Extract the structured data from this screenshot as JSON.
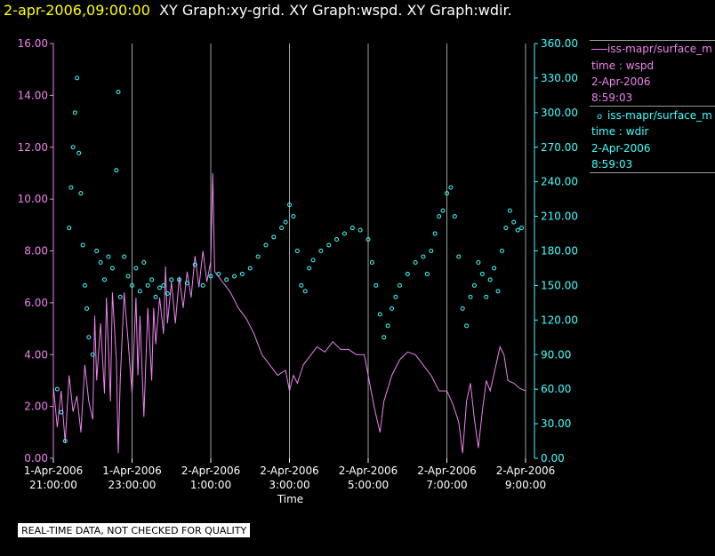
{
  "header": {
    "date": "2-apr-2006,09:00:00",
    "graphs": "XY Graph:xy-grid.  XY Graph:wspd.  XY Graph:wdir."
  },
  "legend": {
    "series1": {
      "line1": "iss-mapr/surface_m",
      "line2": "time : wspd",
      "line3": "2-Apr-2006",
      "line4": "8:59:03"
    },
    "series2": {
      "line1": "iss-mapr/surface_m",
      "line2": "time : wdir",
      "line3": "2-Apr-2006",
      "line4": "8:59:03"
    }
  },
  "footer": {
    "disclaimer": "REAL-TIME DATA, NOT CHECKED FOR QUALITY"
  },
  "colors": {
    "wspd": "#ee82ee",
    "wdir": "#40ffff",
    "grid": "#a0a0a0",
    "background": "#000000"
  },
  "chart_data": {
    "type": "line",
    "xlabel": "Time",
    "x_ticks": [
      {
        "date": "1-Apr-2006",
        "time": "21:00:00",
        "hour": 0
      },
      {
        "date": "1-Apr-2006",
        "time": "23:00:00",
        "hour": 2
      },
      {
        "date": "2-Apr-2006",
        "time": "1:00:00",
        "hour": 4
      },
      {
        "date": "2-Apr-2006",
        "time": "3:00:00",
        "hour": 6
      },
      {
        "date": "2-Apr-2006",
        "time": "5:00:00",
        "hour": 8
      },
      {
        "date": "2-Apr-2006",
        "time": "7:00:00",
        "hour": 10
      },
      {
        "date": "2-Apr-2006",
        "time": "9:00:00",
        "hour": 12
      }
    ],
    "xlim_hours_after_1Apr_21h": [
      0,
      12
    ],
    "left_axis": {
      "ylim": [
        0,
        16
      ],
      "ticks": [
        "0.00",
        "2.00",
        "4.00",
        "6.00",
        "8.00",
        "10.00",
        "12.00",
        "14.00",
        "16.00"
      ]
    },
    "right_axis": {
      "ylim": [
        0,
        360
      ],
      "ticks": [
        "0.00",
        "30.00",
        "60.00",
        "90.00",
        "120.00",
        "150.00",
        "180.00",
        "210.00",
        "240.00",
        "270.00",
        "300.00",
        "330.00",
        "360.00"
      ]
    },
    "grid": "vertical",
    "series": [
      {
        "key": "wspd",
        "axis": "left",
        "style": "line",
        "points": [
          [
            0,
            2.8
          ],
          [
            0.1,
            1.2
          ],
          [
            0.2,
            2.6
          ],
          [
            0.3,
            0.6
          ],
          [
            0.4,
            3.2
          ],
          [
            0.5,
            1.8
          ],
          [
            0.6,
            2.4
          ],
          [
            0.7,
            1.0
          ],
          [
            0.8,
            3.6
          ],
          [
            0.9,
            2.2
          ],
          [
            1.0,
            1.5
          ],
          [
            1.05,
            5.5
          ],
          [
            1.1,
            3.0
          ],
          [
            1.2,
            5.2
          ],
          [
            1.3,
            2.5
          ],
          [
            1.35,
            6.2
          ],
          [
            1.45,
            2.2
          ],
          [
            1.5,
            6.4
          ],
          [
            1.6,
            3.8
          ],
          [
            1.65,
            0.2
          ],
          [
            1.7,
            3.0
          ],
          [
            1.8,
            6.4
          ],
          [
            1.9,
            4.5
          ],
          [
            2.0,
            2.5
          ],
          [
            2.1,
            6.2
          ],
          [
            2.15,
            3.2
          ],
          [
            2.2,
            5.5
          ],
          [
            2.3,
            1.6
          ],
          [
            2.4,
            5.8
          ],
          [
            2.5,
            3.0
          ],
          [
            2.55,
            5.8
          ],
          [
            2.6,
            4.4
          ],
          [
            2.7,
            6.2
          ],
          [
            2.8,
            4.8
          ],
          [
            2.85,
            7.4
          ],
          [
            2.9,
            5.2
          ],
          [
            3.0,
            6.8
          ],
          [
            3.1,
            5.2
          ],
          [
            3.2,
            7.0
          ],
          [
            3.3,
            5.8
          ],
          [
            3.4,
            7.2
          ],
          [
            3.5,
            6.2
          ],
          [
            3.6,
            7.8
          ],
          [
            3.7,
            6.6
          ],
          [
            3.8,
            8.0
          ],
          [
            3.9,
            6.8
          ],
          [
            4.0,
            7.6
          ],
          [
            4.05,
            11.0
          ],
          [
            4.1,
            7.2
          ],
          [
            4.2,
            7.0
          ],
          [
            4.3,
            6.8
          ],
          [
            4.5,
            6.4
          ],
          [
            4.7,
            5.8
          ],
          [
            4.9,
            5.4
          ],
          [
            5.1,
            4.8
          ],
          [
            5.3,
            4.0
          ],
          [
            5.5,
            3.6
          ],
          [
            5.7,
            3.2
          ],
          [
            5.9,
            3.4
          ],
          [
            6.0,
            2.6
          ],
          [
            6.1,
            3.2
          ],
          [
            6.2,
            2.9
          ],
          [
            6.35,
            3.6
          ],
          [
            6.5,
            3.9
          ],
          [
            6.7,
            4.3
          ],
          [
            6.9,
            4.1
          ],
          [
            7.1,
            4.5
          ],
          [
            7.3,
            4.2
          ],
          [
            7.5,
            4.2
          ],
          [
            7.7,
            4.0
          ],
          [
            7.9,
            4.0
          ],
          [
            8.0,
            3.2
          ],
          [
            8.15,
            2.0
          ],
          [
            8.3,
            1.0
          ],
          [
            8.4,
            2.2
          ],
          [
            8.6,
            3.2
          ],
          [
            8.8,
            3.8
          ],
          [
            9.0,
            4.1
          ],
          [
            9.2,
            4.0
          ],
          [
            9.4,
            3.6
          ],
          [
            9.6,
            3.2
          ],
          [
            9.8,
            2.6
          ],
          [
            10.0,
            2.6
          ],
          [
            10.15,
            2.1
          ],
          [
            10.3,
            1.4
          ],
          [
            10.4,
            0.2
          ],
          [
            10.5,
            2.2
          ],
          [
            10.6,
            2.9
          ],
          [
            10.7,
            1.5
          ],
          [
            10.8,
            0.4
          ],
          [
            10.9,
            1.8
          ],
          [
            11.0,
            3.0
          ],
          [
            11.1,
            2.6
          ],
          [
            11.25,
            3.6
          ],
          [
            11.35,
            4.3
          ],
          [
            11.45,
            4.0
          ],
          [
            11.55,
            3.0
          ],
          [
            11.7,
            2.9
          ],
          [
            11.85,
            2.7
          ],
          [
            12.0,
            2.6
          ]
        ]
      },
      {
        "key": "wdir",
        "axis": "right",
        "style": "markers",
        "points": [
          [
            0.1,
            60
          ],
          [
            0.2,
            40
          ],
          [
            0.3,
            15
          ],
          [
            0.4,
            200
          ],
          [
            0.45,
            235
          ],
          [
            0.5,
            270
          ],
          [
            0.55,
            300
          ],
          [
            0.6,
            330
          ],
          [
            0.65,
            265
          ],
          [
            0.7,
            230
          ],
          [
            0.75,
            185
          ],
          [
            0.8,
            150
          ],
          [
            0.85,
            130
          ],
          [
            0.9,
            105
          ],
          [
            1.0,
            90
          ],
          [
            1.1,
            180
          ],
          [
            1.2,
            170
          ],
          [
            1.3,
            155
          ],
          [
            1.4,
            175
          ],
          [
            1.5,
            165
          ],
          [
            1.6,
            250
          ],
          [
            1.65,
            318
          ],
          [
            1.7,
            140
          ],
          [
            1.8,
            175
          ],
          [
            1.9,
            158
          ],
          [
            2.0,
            150
          ],
          [
            2.1,
            165
          ],
          [
            2.2,
            145
          ],
          [
            2.3,
            170
          ],
          [
            2.4,
            150
          ],
          [
            2.5,
            155
          ],
          [
            2.6,
            140
          ],
          [
            2.7,
            148
          ],
          [
            2.8,
            150
          ],
          [
            2.9,
            143
          ],
          [
            3.0,
            155
          ],
          [
            3.2,
            155
          ],
          [
            3.4,
            152
          ],
          [
            3.6,
            168
          ],
          [
            3.8,
            150
          ],
          [
            4.0,
            158
          ],
          [
            4.2,
            160
          ],
          [
            4.4,
            155
          ],
          [
            4.6,
            158
          ],
          [
            4.8,
            160
          ],
          [
            5.0,
            165
          ],
          [
            5.2,
            175
          ],
          [
            5.4,
            185
          ],
          [
            5.6,
            192
          ],
          [
            5.8,
            200
          ],
          [
            5.9,
            205
          ],
          [
            6.0,
            220
          ],
          [
            6.1,
            210
          ],
          [
            6.2,
            180
          ],
          [
            6.3,
            150
          ],
          [
            6.4,
            145
          ],
          [
            6.5,
            165
          ],
          [
            6.6,
            172
          ],
          [
            6.8,
            180
          ],
          [
            7.0,
            185
          ],
          [
            7.2,
            190
          ],
          [
            7.4,
            195
          ],
          [
            7.6,
            200
          ],
          [
            7.8,
            198
          ],
          [
            8.0,
            190
          ],
          [
            8.1,
            170
          ],
          [
            8.2,
            150
          ],
          [
            8.3,
            125
          ],
          [
            8.4,
            105
          ],
          [
            8.5,
            115
          ],
          [
            8.6,
            130
          ],
          [
            8.7,
            140
          ],
          [
            8.8,
            150
          ],
          [
            9.0,
            160
          ],
          [
            9.2,
            170
          ],
          [
            9.4,
            175
          ],
          [
            9.5,
            160
          ],
          [
            9.6,
            180
          ],
          [
            9.7,
            195
          ],
          [
            9.8,
            210
          ],
          [
            9.9,
            215
          ],
          [
            10.0,
            230
          ],
          [
            10.1,
            235
          ],
          [
            10.2,
            210
          ],
          [
            10.3,
            175
          ],
          [
            10.4,
            130
          ],
          [
            10.5,
            115
          ],
          [
            10.6,
            140
          ],
          [
            10.7,
            150
          ],
          [
            10.8,
            170
          ],
          [
            10.9,
            160
          ],
          [
            11.0,
            140
          ],
          [
            11.1,
            155
          ],
          [
            11.2,
            165
          ],
          [
            11.3,
            145
          ],
          [
            11.4,
            180
          ],
          [
            11.5,
            200
          ],
          [
            11.6,
            215
          ],
          [
            11.7,
            205
          ],
          [
            11.8,
            198
          ],
          [
            11.9,
            200
          ]
        ]
      }
    ]
  }
}
